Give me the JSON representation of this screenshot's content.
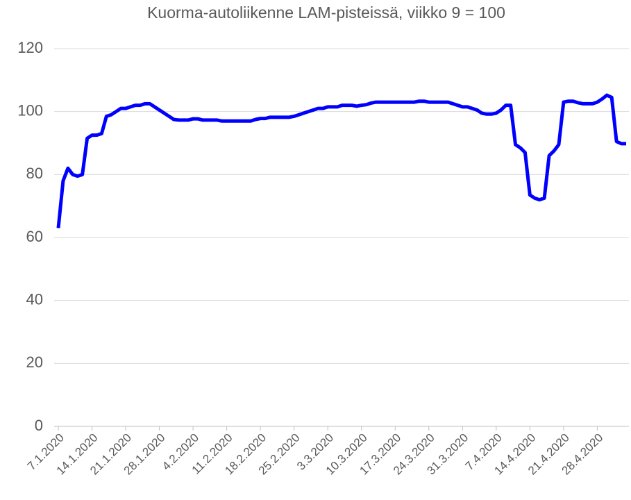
{
  "chart_data": {
    "type": "line",
    "title": "Kuorma-autoliikenne  LAM-pisteissä,  viikko  9 = 100",
    "categories": [
      "7.1.2020",
      null,
      null,
      null,
      null,
      null,
      null,
      "14.1.2020",
      null,
      null,
      null,
      null,
      null,
      null,
      "21.1.2020",
      null,
      null,
      null,
      null,
      null,
      null,
      "28.1.2020",
      null,
      null,
      null,
      null,
      null,
      null,
      "4.2.2020",
      null,
      null,
      null,
      null,
      null,
      null,
      "11.2.2020",
      null,
      null,
      null,
      null,
      null,
      null,
      "18.2.2020",
      null,
      null,
      null,
      null,
      null,
      null,
      "25.2.2020",
      null,
      null,
      null,
      null,
      null,
      null,
      "3.3.2020",
      null,
      null,
      null,
      null,
      null,
      null,
      "10.3.2020",
      null,
      null,
      null,
      null,
      null,
      null,
      "17.3.2020",
      null,
      null,
      null,
      null,
      null,
      null,
      "24.3.2020",
      null,
      null,
      null,
      null,
      null,
      null,
      "31.3.2020",
      null,
      null,
      null,
      null,
      null,
      null,
      "7.4.2020",
      null,
      null,
      null,
      null,
      null,
      null,
      "14.4.2020",
      null,
      null,
      null,
      null,
      null,
      null,
      "21.4.2020",
      null,
      null,
      null,
      null,
      null,
      null,
      "28.4.2020",
      null,
      null,
      null,
      null,
      null,
      null
    ],
    "color": "#0000ff",
    "values": [
      63,
      78,
      82,
      80,
      79.5,
      80,
      91.5,
      92.5,
      92.5,
      93,
      98.5,
      99,
      100,
      101,
      101,
      101.5,
      102,
      102,
      102.5,
      102.5,
      101.5,
      100.5,
      99.5,
      98.5,
      97.5,
      97.3,
      97.3,
      97.3,
      97.7,
      97.7,
      97.3,
      97.3,
      97.3,
      97.3,
      97,
      97,
      97,
      97,
      97,
      97,
      97,
      97.5,
      97.8,
      97.8,
      98.2,
      98.2,
      98.2,
      98.2,
      98.2,
      98.5,
      99,
      99.5,
      100,
      100.5,
      101,
      101,
      101.5,
      101.5,
      101.5,
      102,
      102,
      102,
      101.7,
      102,
      102.2,
      102.7,
      103,
      103,
      103,
      103,
      103,
      103,
      103,
      103,
      103,
      103.3,
      103.3,
      103,
      103,
      103,
      103,
      103,
      102.5,
      102,
      101.5,
      101.5,
      101,
      100.5,
      99.5,
      99.2,
      99.2,
      99.5,
      100.5,
      102,
      102,
      89.5,
      88.5,
      87,
      73.5,
      72.5,
      72,
      72.5,
      86,
      87.5,
      89.5,
      103,
      103.3,
      103.3,
      102.8,
      102.5,
      102.5,
      102.5,
      103,
      104,
      105.2,
      104.5,
      90.5,
      89.8,
      89.8
    ],
    "ylim": [
      0,
      120
    ],
    "yticks": [
      0,
      20,
      40,
      60,
      80,
      100,
      120
    ],
    "grid": true
  }
}
